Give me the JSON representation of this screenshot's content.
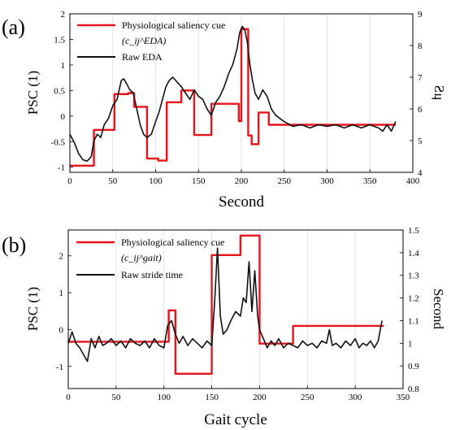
{
  "chart_data": [
    {
      "type": "line",
      "panel_label": "(a)",
      "xlabel": "Second",
      "ylabel": "PSC (1)",
      "y2label": "μS",
      "xlim": [
        0,
        400
      ],
      "ylim": [
        -1.1,
        2.0
      ],
      "y2lim": [
        4.0,
        9.0
      ],
      "xticks": [
        "0",
        "50",
        "100",
        "150",
        "200",
        "250",
        "300",
        "350",
        "400"
      ],
      "yticks": [
        "-1",
        "-0.5",
        "0",
        "0.5",
        "1",
        "1.5",
        "2"
      ],
      "y2ticks": [
        "4",
        "5",
        "6",
        "7",
        "8",
        "9"
      ],
      "grid": "vertical",
      "legend_position": "top-left",
      "series": [
        {
          "name": "Physiological saliency cue",
          "name_sub": "(c_ij^EDA)",
          "color": "#e8141c",
          "axis": "left",
          "step": true,
          "x": [
            0,
            28,
            40,
            52,
            68,
            75,
            90,
            103,
            113,
            130,
            145,
            165,
            197,
            200,
            208,
            212,
            220,
            232,
            245,
            350,
            380
          ],
          "y": [
            -0.97,
            -0.27,
            -0.27,
            0.43,
            0.45,
            0.18,
            -0.83,
            -0.87,
            0.27,
            0.5,
            -0.37,
            0.24,
            -0.1,
            1.7,
            -0.38,
            -0.55,
            0.07,
            -0.17,
            -0.17,
            -0.17,
            -0.17
          ]
        },
        {
          "name": "Raw EDA",
          "color": "#111111",
          "axis": "right",
          "x": [
            0,
            5,
            10,
            15,
            20,
            25,
            28,
            32,
            36,
            40,
            45,
            50,
            55,
            60,
            63,
            66,
            70,
            74,
            78,
            82,
            86,
            90,
            95,
            100,
            104,
            108,
            112,
            116,
            120,
            125,
            130,
            135,
            140,
            145,
            150,
            155,
            160,
            165,
            170,
            175,
            180,
            185,
            190,
            195,
            198,
            201,
            204,
            207,
            210,
            213,
            216,
            220,
            225,
            230,
            235,
            240,
            245,
            250,
            260,
            270,
            280,
            290,
            300,
            310,
            320,
            330,
            340,
            350,
            360,
            365,
            370,
            375,
            380
          ],
          "y": [
            5.2,
            4.95,
            4.6,
            4.4,
            4.35,
            4.5,
            5.0,
            5.2,
            5.1,
            5.5,
            5.7,
            6.1,
            6.3,
            6.9,
            6.95,
            6.8,
            6.6,
            6.5,
            6.0,
            5.5,
            5.2,
            5.1,
            5.2,
            5.6,
            5.9,
            6.3,
            6.7,
            6.9,
            7.0,
            6.85,
            6.7,
            6.5,
            6.3,
            6.6,
            6.4,
            6.3,
            6.0,
            5.8,
            6.2,
            6.4,
            6.7,
            7.1,
            7.4,
            7.9,
            8.4,
            8.6,
            8.5,
            8.1,
            7.4,
            6.9,
            6.5,
            6.3,
            6.6,
            6.4,
            6.0,
            5.8,
            5.7,
            5.6,
            5.45,
            5.5,
            5.4,
            5.5,
            5.45,
            5.5,
            5.4,
            5.5,
            5.4,
            5.5,
            5.4,
            5.3,
            5.5,
            5.3,
            5.6
          ]
        }
      ]
    },
    {
      "type": "line",
      "panel_label": "(b)",
      "xlabel": "Gait cycle",
      "ylabel": "PSC (1)",
      "y2label": "Second",
      "xlim": [
        0,
        350
      ],
      "ylim": [
        -1.6,
        2.7
      ],
      "y2lim": [
        0.8,
        1.5
      ],
      "xticks": [
        "0",
        "50",
        "100",
        "150",
        "200",
        "250",
        "300",
        "350"
      ],
      "yticks": [
        "-1",
        "0",
        "1",
        "2"
      ],
      "y2ticks": [
        "0.8",
        "0.9",
        "1",
        "1.1",
        "1.2",
        "1.3",
        "1.4",
        "1.5"
      ],
      "grid": "vertical",
      "legend_position": "top-left",
      "series": [
        {
          "name": "Physiological saliency cue",
          "name_sub": "(c_ij^gait)",
          "color": "#e8141c",
          "axis": "left",
          "step": true,
          "x": [
            0,
            105,
            112,
            150,
            180,
            200,
            235,
            330
          ],
          "y": [
            -0.33,
            0.52,
            -1.2,
            2.02,
            2.55,
            -0.38,
            0.1,
            0.1
          ]
        },
        {
          "name": "Raw stride time",
          "color": "#111111",
          "axis": "right",
          "x": [
            0,
            4,
            8,
            12,
            16,
            20,
            24,
            28,
            32,
            36,
            40,
            45,
            50,
            55,
            60,
            65,
            70,
            75,
            80,
            85,
            90,
            95,
            100,
            104,
            108,
            112,
            116,
            120,
            125,
            130,
            135,
            140,
            145,
            150,
            153,
            156,
            159,
            162,
            166,
            170,
            175,
            180,
            183,
            186,
            189,
            192,
            195,
            198,
            200,
            204,
            208,
            212,
            216,
            220,
            225,
            230,
            235,
            240,
            245,
            250,
            255,
            260,
            265,
            270,
            273,
            276,
            280,
            285,
            290,
            295,
            300,
            304,
            308,
            312,
            316,
            320,
            324,
            328
          ],
          "y": [
            1.0,
            1.05,
            1.0,
            0.98,
            0.95,
            0.92,
            1.02,
            0.98,
            1.03,
            0.99,
            1.0,
            1.02,
            0.99,
            1.01,
            0.98,
            1.02,
            1.0,
            0.99,
            1.01,
            0.98,
            1.02,
            0.99,
            0.98,
            1.08,
            1.1,
            1.04,
            1.0,
            1.03,
            0.99,
            1.02,
            1.0,
            0.98,
            1.01,
            0.99,
            1.18,
            1.42,
            1.12,
            1.04,
            1.06,
            1.1,
            1.14,
            1.12,
            1.2,
            1.18,
            1.36,
            1.14,
            1.32,
            1.12,
            1.06,
            1.02,
            0.98,
            1.01,
            0.99,
            1.02,
            0.98,
            1.0,
            0.99,
            0.98,
            1.01,
            0.99,
            1.0,
            0.98,
            1.01,
            1.0,
            1.06,
            0.99,
            1.0,
            0.98,
            1.01,
            0.99,
            1.02,
            0.98,
            1.0,
            0.99,
            1.01,
            0.98,
            1.01,
            1.1
          ]
        }
      ]
    }
  ]
}
